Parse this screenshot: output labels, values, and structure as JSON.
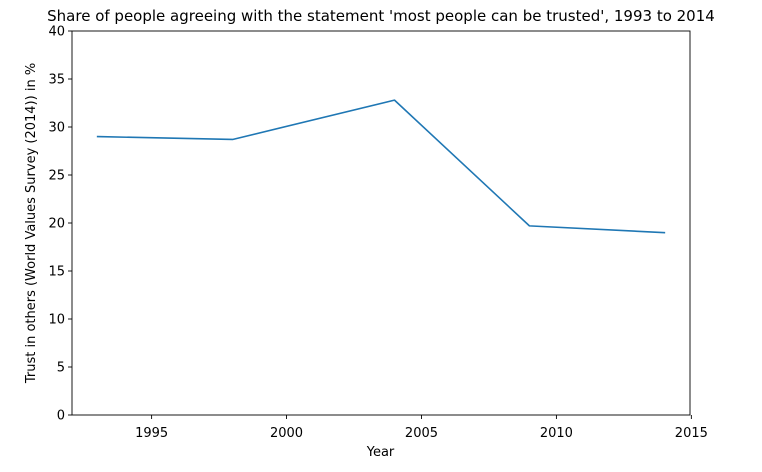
{
  "chart_data": {
    "type": "line",
    "title": "Share of people agreeing with the statement 'most people can be trusted', 1993 to 2014",
    "xlabel": "Year",
    "ylabel": "Trust in others (World Values Survey (2014)) in %",
    "xlim": [
      1992.05,
      2014.95
    ],
    "ylim": [
      0,
      40
    ],
    "xticks": [
      1995,
      2000,
      2005,
      2010,
      2015
    ],
    "yticks": [
      0,
      5,
      10,
      15,
      20,
      25,
      30,
      35,
      40
    ],
    "grid": false,
    "series": [
      {
        "color": "#1f77b4",
        "x": [
          1993,
          1998,
          2004,
          2009,
          2014
        ],
        "y": [
          29.0,
          28.7,
          32.8,
          19.7,
          19.0
        ]
      }
    ]
  }
}
